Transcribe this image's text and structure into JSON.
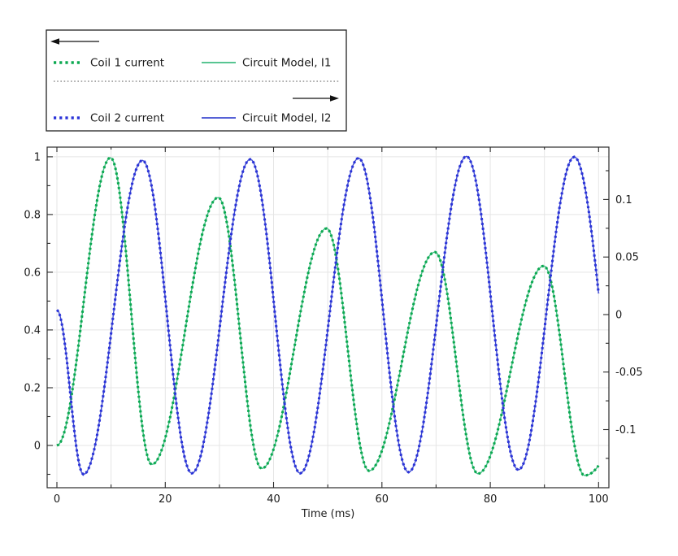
{
  "colors": {
    "coil1": "#0ba850",
    "model1": "#41bd83",
    "coil2": "#2a33d8",
    "model2": "#3f4bd0",
    "frame": "#2b2b2b",
    "grid": "#e5e5e5",
    "text": "#1b1b1b",
    "legend_border": "#222222",
    "arrow": "#111111",
    "separator": "#555555",
    "background": "#ffffff"
  },
  "legend": {
    "groups": [
      {
        "arrow_direction": "left",
        "entries": [
          {
            "label": "Coil 1 current",
            "style": "dotted",
            "color_key": "coil1"
          },
          {
            "label": "Circuit Model, I1",
            "style": "solid",
            "color_key": "model1"
          }
        ]
      },
      {
        "arrow_direction": "right",
        "entries": [
          {
            "label": "Coil 2 current",
            "style": "dotted",
            "color_key": "coil2"
          },
          {
            "label": "Circuit Model, I2",
            "style": "solid",
            "color_key": "model2"
          }
        ]
      }
    ]
  },
  "chart_data": {
    "type": "line",
    "title": "",
    "xlabel": "Time (ms)",
    "x_axis": {
      "tick_labels": [
        "0",
        "20",
        "40",
        "60",
        "80",
        "100"
      ],
      "tick_values": [
        0,
        20,
        40,
        60,
        80,
        100
      ],
      "minor_ticks": [
        10,
        30,
        50,
        70,
        90
      ],
      "gridlines": [
        0,
        10,
        20,
        30,
        40,
        50,
        60,
        70,
        80,
        90,
        100
      ],
      "lim": [
        -1.8,
        101.9
      ]
    },
    "left_axis": {
      "tick_labels": [
        "1",
        "0.8",
        "0.6",
        "0.4",
        "0.2",
        "0"
      ],
      "tick_values": [
        1,
        0.8,
        0.6,
        0.4,
        0.2,
        0
      ],
      "minor_ticks": [
        0.9,
        0.7,
        0.5,
        0.3,
        0.1,
        -0.1
      ],
      "gridline_values": [
        1,
        0.8,
        0.6,
        0.4,
        0.2,
        0
      ],
      "lim": [
        -0.1465,
        1.0335
      ]
    },
    "right_axis": {
      "tick_labels": [
        "0.1",
        "0.05",
        "0",
        "-0.05",
        "-0.1"
      ],
      "tick_values": [
        0.1,
        0.05,
        0,
        -0.05,
        -0.1
      ],
      "minor_ticks": [
        0.125,
        0.075,
        0.025,
        -0.025,
        -0.075,
        -0.125
      ],
      "lim": [
        -0.1505,
        0.1455
      ]
    },
    "grid": true,
    "legend_position": "top-left-outside",
    "series": [
      {
        "name": "Circuit Model, I1",
        "axis": "left",
        "style": "solid",
        "color_key": "model1",
        "interpolation": "cosine-extrema",
        "keypoints": [
          [
            0,
            0
          ],
          [
            9.9,
            0.997
          ],
          [
            17.5,
            -0.066
          ],
          [
            29.8,
            0.859
          ],
          [
            37.8,
            -0.08
          ],
          [
            49.8,
            0.752
          ],
          [
            57.6,
            -0.088
          ],
          [
            69.8,
            0.67
          ],
          [
            77.7,
            -0.098
          ],
          [
            89.9,
            0.622
          ],
          [
            97.4,
            -0.104
          ],
          [
            115.5,
            0.575
          ]
        ]
      },
      {
        "name": "Coil 1 current",
        "axis": "left",
        "style": "dotted",
        "color_key": "coil1",
        "interpolation": "cosine-extrema",
        "keypoints": [
          [
            0,
            0
          ],
          [
            9.9,
            0.997
          ],
          [
            17.5,
            -0.066
          ],
          [
            29.8,
            0.859
          ],
          [
            37.8,
            -0.08
          ],
          [
            49.8,
            0.752
          ],
          [
            57.6,
            -0.088
          ],
          [
            69.8,
            0.67
          ],
          [
            77.7,
            -0.098
          ],
          [
            89.9,
            0.622
          ],
          [
            97.4,
            -0.104
          ],
          [
            115.5,
            0.575
          ]
        ]
      },
      {
        "name": "Circuit Model, I2",
        "axis": "right",
        "style": "solid",
        "color_key": "model2",
        "interpolation": "cosine-extrema",
        "keypoints": [
          [
            0,
            0.004
          ],
          [
            4.9,
            -0.139
          ],
          [
            15.8,
            0.134
          ],
          [
            24.9,
            -0.138
          ],
          [
            35.7,
            0.135
          ],
          [
            44.9,
            -0.138
          ],
          [
            55.7,
            0.136
          ],
          [
            64.9,
            -0.137
          ],
          [
            75.6,
            0.1375
          ],
          [
            85.2,
            -0.135
          ],
          [
            95.5,
            0.137
          ],
          [
            105.3,
            -0.135
          ]
        ]
      },
      {
        "name": "Coil 2 current",
        "axis": "right",
        "style": "dotted",
        "color_key": "coil2",
        "interpolation": "cosine-extrema",
        "keypoints": [
          [
            0,
            0.004
          ],
          [
            4.9,
            -0.139
          ],
          [
            15.8,
            0.134
          ],
          [
            24.9,
            -0.138
          ],
          [
            35.7,
            0.135
          ],
          [
            44.9,
            -0.138
          ],
          [
            55.7,
            0.136
          ],
          [
            64.9,
            -0.137
          ],
          [
            75.6,
            0.1375
          ],
          [
            85.2,
            -0.135
          ],
          [
            95.5,
            0.137
          ],
          [
            105.3,
            -0.135
          ]
        ]
      }
    ],
    "x_clip_max": 100
  }
}
